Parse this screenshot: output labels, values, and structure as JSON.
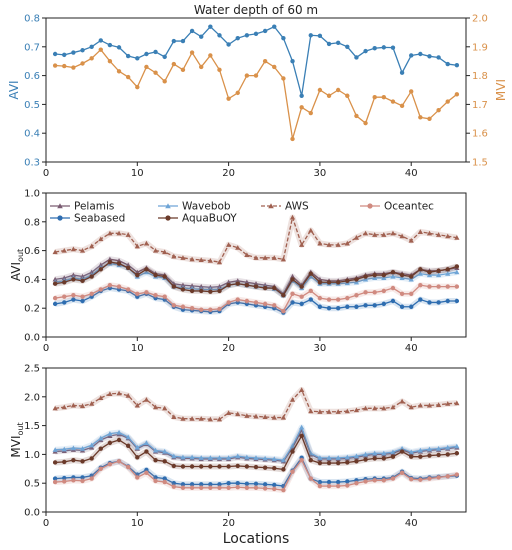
{
  "chart_data": [
    {
      "type": "line",
      "title": "Water depth of 60 m",
      "xlabel": "",
      "ylabel": "AVI",
      "ylabel_right": "MVI",
      "xlim": [
        0,
        46
      ],
      "ylim": [
        0.3,
        0.8
      ],
      "ylim_right": [
        1.5,
        2.0
      ],
      "xticks": [
        "0",
        "10",
        "20",
        "30",
        "40"
      ],
      "yticks": [
        "0.3",
        "0.4",
        "0.5",
        "0.6",
        "0.7",
        "0.8"
      ],
      "yticks_right": [
        "1.5",
        "1.6",
        "1.7",
        "1.8",
        "1.9",
        "2.0"
      ],
      "grid": false,
      "colors": {
        "AVI": "#3a7fb5",
        "MVI": "#d9914a"
      },
      "x": [
        1,
        2,
        3,
        4,
        5,
        6,
        7,
        8,
        9,
        10,
        11,
        12,
        13,
        14,
        15,
        16,
        17,
        18,
        19,
        20,
        21,
        22,
        23,
        24,
        25,
        26,
        27,
        28,
        29,
        30,
        31,
        32,
        33,
        34,
        35,
        36,
        37,
        38,
        39,
        40,
        41,
        42,
        43,
        44,
        45
      ],
      "series": [
        {
          "axis": "left",
          "values": [
            0.675,
            0.672,
            0.68,
            0.688,
            0.7,
            0.722,
            0.706,
            0.698,
            0.668,
            0.66,
            0.675,
            0.682,
            0.665,
            0.72,
            0.72,
            0.755,
            0.735,
            0.77,
            0.74,
            0.708,
            0.73,
            0.74,
            0.745,
            0.755,
            0.77,
            0.73,
            0.65,
            0.53,
            0.74,
            0.738,
            0.71,
            0.714,
            0.7,
            0.663,
            0.685,
            0.695,
            0.698,
            0.697,
            0.61,
            0.67,
            0.675,
            0.667,
            0.663,
            0.64,
            0.636
          ]
        },
        {
          "axis": "right",
          "values": [
            1.835,
            1.833,
            1.828,
            1.842,
            1.86,
            1.89,
            1.85,
            1.815,
            1.795,
            1.76,
            1.83,
            1.81,
            1.78,
            1.84,
            1.82,
            1.88,
            1.83,
            1.87,
            1.82,
            1.72,
            1.74,
            1.8,
            1.8,
            1.85,
            1.83,
            1.79,
            1.58,
            1.69,
            1.67,
            1.75,
            1.73,
            1.75,
            1.73,
            1.66,
            1.635,
            1.725,
            1.725,
            1.71,
            1.695,
            1.745,
            1.655,
            1.65,
            1.68,
            1.71,
            1.735
          ]
        }
      ]
    },
    {
      "type": "line",
      "title": "",
      "xlabel": "",
      "ylabel": "AVI",
      "ylabel_sub": "out",
      "xlim": [
        0,
        46
      ],
      "ylim": [
        0.0,
        1.0
      ],
      "xticks": [
        "0",
        "10",
        "20",
        "30",
        "40"
      ],
      "yticks": [
        "0.0",
        "0.2",
        "0.4",
        "0.6",
        "0.8",
        "1.0"
      ],
      "grid": false,
      "legend_position": "top-left",
      "x": [
        1,
        2,
        3,
        4,
        5,
        6,
        7,
        8,
        9,
        10,
        11,
        12,
        13,
        14,
        15,
        16,
        17,
        18,
        19,
        20,
        21,
        22,
        23,
        24,
        25,
        26,
        27,
        28,
        29,
        30,
        31,
        32,
        33,
        34,
        35,
        36,
        37,
        38,
        39,
        40,
        41,
        42,
        43,
        44,
        45
      ],
      "series": [
        {
          "name": "Pelamis",
          "color": "#7a5c72",
          "marker": "triangle",
          "values": [
            0.4,
            0.41,
            0.43,
            0.42,
            0.45,
            0.5,
            0.54,
            0.53,
            0.5,
            0.45,
            0.48,
            0.44,
            0.43,
            0.37,
            0.36,
            0.355,
            0.35,
            0.345,
            0.35,
            0.38,
            0.39,
            0.38,
            0.37,
            0.36,
            0.35,
            0.3,
            0.42,
            0.36,
            0.45,
            0.4,
            0.39,
            0.39,
            0.4,
            0.41,
            0.43,
            0.44,
            0.44,
            0.45,
            0.44,
            0.43,
            0.47,
            0.46,
            0.46,
            0.47,
            0.48
          ]
        },
        {
          "name": "Seabased",
          "color": "#2e6db0",
          "marker": "circle",
          "values": [
            0.23,
            0.24,
            0.26,
            0.25,
            0.28,
            0.32,
            0.34,
            0.33,
            0.32,
            0.28,
            0.3,
            0.27,
            0.26,
            0.21,
            0.19,
            0.185,
            0.18,
            0.175,
            0.18,
            0.23,
            0.24,
            0.23,
            0.22,
            0.21,
            0.2,
            0.17,
            0.24,
            0.23,
            0.26,
            0.21,
            0.2,
            0.2,
            0.21,
            0.21,
            0.22,
            0.22,
            0.23,
            0.25,
            0.21,
            0.21,
            0.26,
            0.24,
            0.24,
            0.25,
            0.25
          ]
        },
        {
          "name": "Wavebob",
          "color": "#6fa5d6",
          "marker": "triangle",
          "values": [
            0.38,
            0.39,
            0.41,
            0.4,
            0.43,
            0.48,
            0.51,
            0.5,
            0.48,
            0.42,
            0.45,
            0.42,
            0.41,
            0.35,
            0.34,
            0.335,
            0.33,
            0.33,
            0.33,
            0.36,
            0.37,
            0.36,
            0.35,
            0.345,
            0.335,
            0.29,
            0.39,
            0.34,
            0.42,
            0.37,
            0.37,
            0.37,
            0.375,
            0.38,
            0.4,
            0.41,
            0.41,
            0.42,
            0.41,
            0.4,
            0.44,
            0.43,
            0.43,
            0.44,
            0.45
          ]
        },
        {
          "name": "AquaBuOY",
          "color": "#6b3a2a",
          "marker": "circle",
          "values": [
            0.37,
            0.38,
            0.4,
            0.39,
            0.42,
            0.47,
            0.52,
            0.51,
            0.48,
            0.43,
            0.47,
            0.43,
            0.42,
            0.35,
            0.33,
            0.32,
            0.32,
            0.315,
            0.32,
            0.36,
            0.37,
            0.36,
            0.35,
            0.34,
            0.34,
            0.29,
            0.4,
            0.35,
            0.44,
            0.38,
            0.38,
            0.38,
            0.39,
            0.4,
            0.42,
            0.43,
            0.43,
            0.45,
            0.43,
            0.42,
            0.47,
            0.45,
            0.46,
            0.47,
            0.49
          ]
        },
        {
          "name": "AWS",
          "color": "#a06050",
          "marker": "triangle",
          "dashed": true,
          "values": [
            0.59,
            0.6,
            0.61,
            0.6,
            0.63,
            0.68,
            0.72,
            0.72,
            0.71,
            0.63,
            0.65,
            0.6,
            0.59,
            0.56,
            0.55,
            0.54,
            0.535,
            0.53,
            0.52,
            0.64,
            0.62,
            0.57,
            0.55,
            0.55,
            0.55,
            0.54,
            0.83,
            0.64,
            0.74,
            0.65,
            0.64,
            0.64,
            0.65,
            0.69,
            0.72,
            0.71,
            0.71,
            0.72,
            0.7,
            0.67,
            0.73,
            0.72,
            0.71,
            0.7,
            0.69
          ]
        },
        {
          "name": "Oceantec",
          "color": "#d08a80",
          "marker": "circle",
          "values": [
            0.27,
            0.28,
            0.29,
            0.28,
            0.3,
            0.33,
            0.36,
            0.35,
            0.33,
            0.3,
            0.31,
            0.29,
            0.28,
            0.22,
            0.21,
            0.2,
            0.19,
            0.19,
            0.195,
            0.24,
            0.26,
            0.25,
            0.24,
            0.23,
            0.22,
            0.18,
            0.3,
            0.28,
            0.32,
            0.27,
            0.26,
            0.26,
            0.27,
            0.29,
            0.31,
            0.31,
            0.32,
            0.34,
            0.3,
            0.3,
            0.36,
            0.35,
            0.35,
            0.35,
            0.35
          ]
        }
      ]
    },
    {
      "type": "line",
      "title": "",
      "xlabel": "Locations",
      "ylabel": "MVI",
      "ylabel_sub": "out",
      "xlim": [
        0,
        46
      ],
      "ylim": [
        0.0,
        2.5
      ],
      "xticks": [
        "0",
        "10",
        "20",
        "30",
        "40"
      ],
      "yticks": [
        "0.0",
        "0.5",
        "1.0",
        "1.5",
        "2.0",
        "2.5"
      ],
      "grid": false,
      "x": [
        1,
        2,
        3,
        4,
        5,
        6,
        7,
        8,
        9,
        10,
        11,
        12,
        13,
        14,
        15,
        16,
        17,
        18,
        19,
        20,
        21,
        22,
        23,
        24,
        25,
        26,
        27,
        28,
        29,
        30,
        31,
        32,
        33,
        34,
        35,
        36,
        37,
        38,
        39,
        40,
        41,
        42,
        43,
        44,
        45
      ],
      "series": [
        {
          "color": "#7a5c72",
          "marker": "triangle",
          "values": [
            1.05,
            1.06,
            1.08,
            1.07,
            1.12,
            1.25,
            1.32,
            1.35,
            1.28,
            1.1,
            1.18,
            1.05,
            1.03,
            0.95,
            0.93,
            0.93,
            0.92,
            0.92,
            0.92,
            0.92,
            0.95,
            0.93,
            0.92,
            0.91,
            0.9,
            0.88,
            1.12,
            1.42,
            1.0,
            0.92,
            0.92,
            0.92,
            0.93,
            0.95,
            0.98,
            1.0,
            1.0,
            1.02,
            1.08,
            1.02,
            1.05,
            1.07,
            1.08,
            1.1,
            1.12
          ]
        },
        {
          "color": "#2e6db0",
          "marker": "circle",
          "values": [
            0.58,
            0.59,
            0.6,
            0.6,
            0.63,
            0.77,
            0.85,
            0.88,
            0.79,
            0.65,
            0.73,
            0.6,
            0.58,
            0.5,
            0.48,
            0.48,
            0.48,
            0.48,
            0.48,
            0.5,
            0.5,
            0.49,
            0.49,
            0.48,
            0.47,
            0.45,
            0.72,
            0.94,
            0.58,
            0.52,
            0.52,
            0.52,
            0.53,
            0.55,
            0.57,
            0.58,
            0.58,
            0.6,
            0.7,
            0.59,
            0.58,
            0.6,
            0.61,
            0.62,
            0.63
          ]
        },
        {
          "color": "#6fa5d6",
          "marker": "triangle",
          "values": [
            1.08,
            1.09,
            1.11,
            1.1,
            1.16,
            1.28,
            1.36,
            1.38,
            1.3,
            1.12,
            1.2,
            1.07,
            1.05,
            0.97,
            0.95,
            0.95,
            0.94,
            0.94,
            0.94,
            0.94,
            0.97,
            0.95,
            0.94,
            0.93,
            0.92,
            0.9,
            1.15,
            1.47,
            1.02,
            0.94,
            0.94,
            0.94,
            0.95,
            0.97,
            1.0,
            1.02,
            1.02,
            1.04,
            1.1,
            1.04,
            1.07,
            1.09,
            1.1,
            1.12,
            1.14
          ]
        },
        {
          "color": "#6b3a2a",
          "marker": "circle",
          "values": [
            0.86,
            0.87,
            0.9,
            0.88,
            0.93,
            1.1,
            1.2,
            1.25,
            1.15,
            0.95,
            1.05,
            0.9,
            0.88,
            0.8,
            0.79,
            0.79,
            0.79,
            0.79,
            0.79,
            0.79,
            0.8,
            0.79,
            0.78,
            0.77,
            0.76,
            0.74,
            1.05,
            1.32,
            0.9,
            0.85,
            0.85,
            0.85,
            0.86,
            0.88,
            0.91,
            0.93,
            0.93,
            0.96,
            1.05,
            0.96,
            0.96,
            0.98,
            0.99,
            1.0,
            1.02
          ]
        },
        {
          "color": "#a06050",
          "marker": "triangle",
          "dashed": true,
          "values": [
            1.8,
            1.82,
            1.85,
            1.84,
            1.88,
            1.98,
            2.05,
            2.06,
            2.02,
            1.85,
            1.95,
            1.82,
            1.8,
            1.65,
            1.62,
            1.62,
            1.62,
            1.61,
            1.61,
            1.72,
            1.7,
            1.67,
            1.66,
            1.65,
            1.64,
            1.64,
            1.95,
            2.12,
            1.75,
            1.74,
            1.74,
            1.74,
            1.75,
            1.77,
            1.8,
            1.8,
            1.8,
            1.82,
            1.92,
            1.82,
            1.85,
            1.85,
            1.86,
            1.88,
            1.89
          ]
        },
        {
          "color": "#d08a80",
          "marker": "circle",
          "values": [
            0.52,
            0.53,
            0.55,
            0.54,
            0.58,
            0.75,
            0.83,
            0.88,
            0.78,
            0.6,
            0.68,
            0.54,
            0.52,
            0.44,
            0.42,
            0.42,
            0.42,
            0.42,
            0.42,
            0.42,
            0.43,
            0.42,
            0.42,
            0.41,
            0.4,
            0.38,
            0.7,
            0.9,
            0.58,
            0.45,
            0.45,
            0.45,
            0.46,
            0.5,
            0.53,
            0.55,
            0.55,
            0.58,
            0.68,
            0.57,
            0.56,
            0.58,
            0.6,
            0.62,
            0.65
          ]
        }
      ]
    }
  ]
}
